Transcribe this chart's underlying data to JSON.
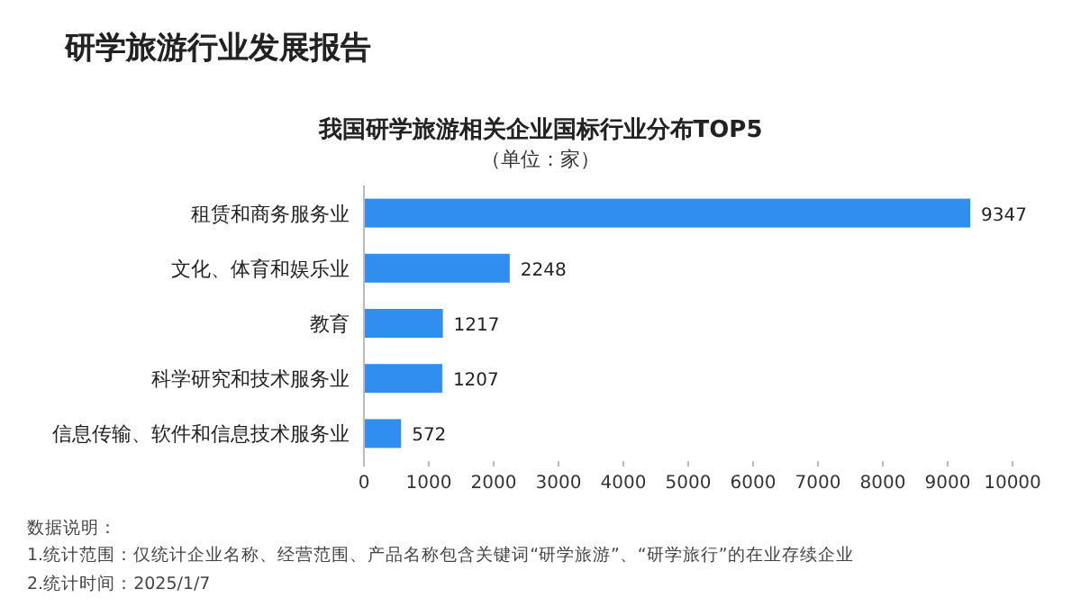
{
  "chart_data": {
    "type": "bar",
    "orientation": "horizontal",
    "title": "我国研学旅游相关企业国标行业分布TOP5",
    "subtitle": "（单位：家）",
    "categories": [
      "租赁和商务服务业",
      "文化、体育和娱乐业",
      "教育",
      "科学研究和技术服务业",
      "信息传输、软件和信息技术服务业"
    ],
    "values": [
      9347,
      2248,
      1217,
      1207,
      572
    ],
    "color": "#2f8ef0",
    "data_labels": true,
    "xlim": [
      0,
      10000
    ],
    "xticks": [
      0,
      1000,
      2000,
      3000,
      4000,
      5000,
      6000,
      7000,
      8000,
      9000,
      10000
    ],
    "annotations": [
      "研学旅游行业发展报告",
      "数据说明：",
      "1.统计范围：仅统计企业名称、经营范围、产品名称包含关键词“研学旅游”、“研学旅行”的在业存续企业",
      "2.统计时间：2025/1/7"
    ]
  }
}
